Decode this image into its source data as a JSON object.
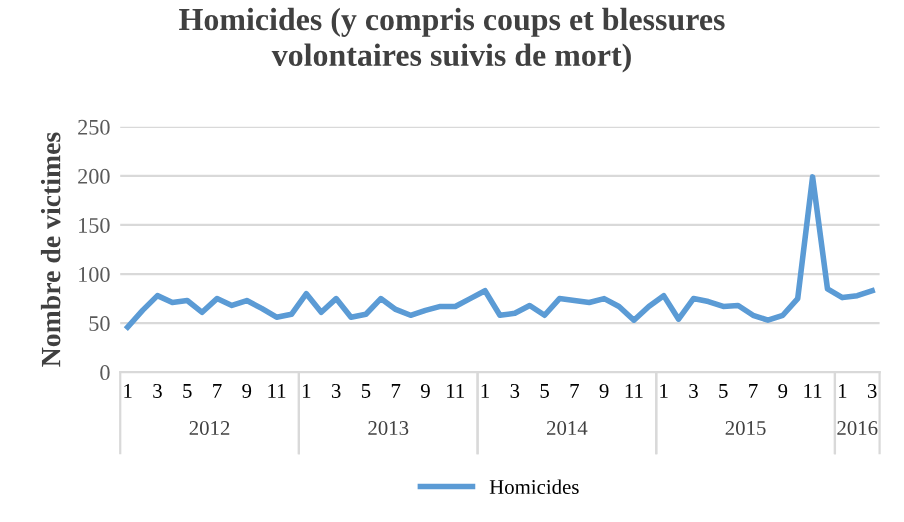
{
  "chart_data": {
    "type": "line",
    "title": "Homicides (y compris coups et blessures\nvolontaires suivis de mort)",
    "ylabel": "Nombre de victimes",
    "categories": [
      "1",
      null,
      "3",
      null,
      "5",
      null,
      "7",
      null,
      "9",
      null,
      "11",
      null,
      "1",
      null,
      "3",
      null,
      "5",
      null,
      "7",
      null,
      "9",
      null,
      "11",
      null,
      "1",
      null,
      "3",
      null,
      "5",
      null,
      "7",
      null,
      "9",
      null,
      "11",
      null,
      "1",
      null,
      "3",
      null,
      "5",
      null,
      "7",
      null,
      "9",
      null,
      "11",
      null,
      "1",
      null,
      "3"
    ],
    "series": [
      {
        "name": "Homicides",
        "color": "#5b9bd5",
        "values": [
          46,
          63,
          78,
          71,
          73,
          61,
          75,
          68,
          73,
          65,
          56,
          59,
          80,
          61,
          75,
          56,
          59,
          75,
          64,
          58,
          63,
          67,
          67,
          75,
          83,
          58,
          60,
          68,
          58,
          75,
          73,
          71,
          75,
          67,
          53,
          67,
          78,
          54,
          75,
          72,
          67,
          68,
          58,
          53,
          58,
          75,
          199,
          85,
          76,
          78,
          83
        ]
      }
    ],
    "annotations": [
      "2012",
      "2013",
      "2014",
      "2015",
      "2016"
    ],
    "ylim": [
      0,
      250
    ],
    "yticks": [
      0,
      50,
      100,
      150,
      200,
      250
    ],
    "grid": "y",
    "legend": "bottom",
    "marker": "none",
    "line_style": "solid"
  }
}
